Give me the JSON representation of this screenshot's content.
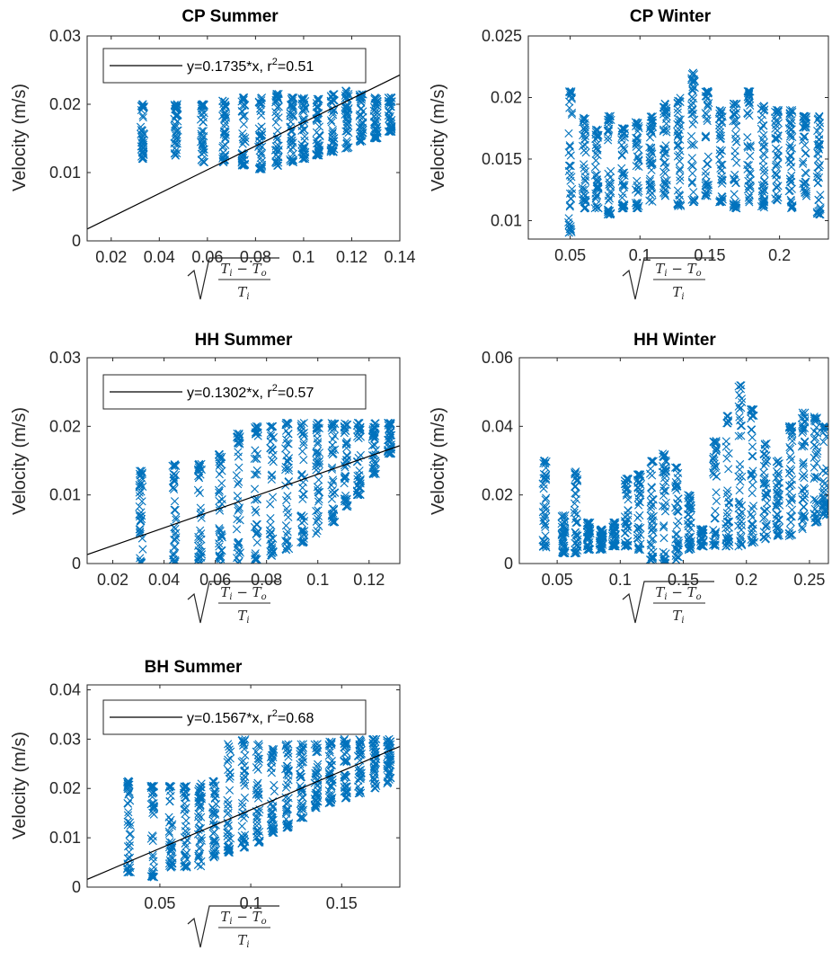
{
  "chart_data": [
    {
      "id": "cp-summer",
      "type": "scatter",
      "title": "CP Summer",
      "xlabel": "sqrt((T_i - T_o)/T_i)",
      "ylabel": "Velocity (m/s)",
      "xlim": [
        0.01,
        0.14
      ],
      "ylim": [
        0,
        0.03
      ],
      "xticks": [
        0.02,
        0.04,
        0.06,
        0.08,
        0.1,
        0.12,
        0.14
      ],
      "xticklabels": [
        "0.02",
        "0.04",
        "0.06",
        "0.08",
        "0.1",
        "0.12",
        "0.14"
      ],
      "yticks": [
        0,
        0.01,
        0.02,
        0.03
      ],
      "yticklabels": [
        "0",
        "0.01",
        "0.02",
        "0.03"
      ],
      "legend": "top-left",
      "fit": {
        "slope": 0.1735,
        "r2": 0.51,
        "label_prefix": "y=0.1735*x, r",
        "label_suffix": "=0.51"
      },
      "series": [
        {
          "x": 0.033,
          "y_min": 0.012,
          "y_max": 0.02
        },
        {
          "x": 0.047,
          "y_min": 0.0125,
          "y_max": 0.02
        },
        {
          "x": 0.058,
          "y_min": 0.0115,
          "y_max": 0.02
        },
        {
          "x": 0.067,
          "y_min": 0.0115,
          "y_max": 0.0205
        },
        {
          "x": 0.075,
          "y_min": 0.011,
          "y_max": 0.021
        },
        {
          "x": 0.082,
          "y_min": 0.0105,
          "y_max": 0.021
        },
        {
          "x": 0.089,
          "y_min": 0.011,
          "y_max": 0.0215
        },
        {
          "x": 0.095,
          "y_min": 0.0115,
          "y_max": 0.021
        },
        {
          "x": 0.1,
          "y_min": 0.012,
          "y_max": 0.021
        },
        {
          "x": 0.106,
          "y_min": 0.0125,
          "y_max": 0.021
        },
        {
          "x": 0.112,
          "y_min": 0.013,
          "y_max": 0.0215
        },
        {
          "x": 0.118,
          "y_min": 0.0135,
          "y_max": 0.022
        },
        {
          "x": 0.124,
          "y_min": 0.0145,
          "y_max": 0.0215
        },
        {
          "x": 0.13,
          "y_min": 0.015,
          "y_max": 0.021
        },
        {
          "x": 0.136,
          "y_min": 0.016,
          "y_max": 0.021
        }
      ]
    },
    {
      "id": "cp-winter",
      "type": "scatter",
      "title": "CP Winter",
      "xlabel": "sqrt((T_i - T_o)/T_i)",
      "ylabel": "Velocity (m/s)",
      "xlim": [
        0.02,
        0.235
      ],
      "ylim": [
        0.0085,
        0.025
      ],
      "xticks": [
        0.05,
        0.1,
        0.15,
        0.2
      ],
      "xticklabels": [
        "0.05",
        "0.1",
        "0.15",
        "0.2"
      ],
      "yticks": [
        0.01,
        0.015,
        0.02,
        0.025
      ],
      "yticklabels": [
        "0.01",
        "0.015",
        "0.02",
        "0.025"
      ],
      "series": [
        {
          "x": 0.05,
          "y_min": 0.009,
          "y_max": 0.0205
        },
        {
          "x": 0.06,
          "y_min": 0.011,
          "y_max": 0.0185
        },
        {
          "x": 0.069,
          "y_min": 0.011,
          "y_max": 0.0175
        },
        {
          "x": 0.078,
          "y_min": 0.0105,
          "y_max": 0.0185
        },
        {
          "x": 0.088,
          "y_min": 0.011,
          "y_max": 0.0175
        },
        {
          "x": 0.098,
          "y_min": 0.011,
          "y_max": 0.018
        },
        {
          "x": 0.108,
          "y_min": 0.0115,
          "y_max": 0.0185
        },
        {
          "x": 0.118,
          "y_min": 0.012,
          "y_max": 0.0195
        },
        {
          "x": 0.128,
          "y_min": 0.011,
          "y_max": 0.02
        },
        {
          "x": 0.138,
          "y_min": 0.0115,
          "y_max": 0.022
        },
        {
          "x": 0.148,
          "y_min": 0.012,
          "y_max": 0.0205
        },
        {
          "x": 0.158,
          "y_min": 0.0115,
          "y_max": 0.019
        },
        {
          "x": 0.168,
          "y_min": 0.011,
          "y_max": 0.0195
        },
        {
          "x": 0.178,
          "y_min": 0.0115,
          "y_max": 0.0205
        },
        {
          "x": 0.188,
          "y_min": 0.011,
          "y_max": 0.0195
        },
        {
          "x": 0.198,
          "y_min": 0.0115,
          "y_max": 0.019
        },
        {
          "x": 0.208,
          "y_min": 0.011,
          "y_max": 0.019
        },
        {
          "x": 0.218,
          "y_min": 0.012,
          "y_max": 0.0185
        },
        {
          "x": 0.228,
          "y_min": 0.0105,
          "y_max": 0.0185
        }
      ]
    },
    {
      "id": "hh-summer",
      "type": "scatter",
      "title": "HH Summer",
      "xlabel": "sqrt((T_i - T_o)/T_i)",
      "ylabel": "Velocity (m/s)",
      "xlim": [
        0.01,
        0.132
      ],
      "ylim": [
        0,
        0.03
      ],
      "xticks": [
        0.02,
        0.04,
        0.06,
        0.08,
        0.1,
        0.12
      ],
      "xticklabels": [
        "0.02",
        "0.04",
        "0.06",
        "0.08",
        "0.1",
        "0.12"
      ],
      "yticks": [
        0,
        0.01,
        0.02,
        0.03
      ],
      "yticklabels": [
        "0",
        "0.01",
        "0.02",
        "0.03"
      ],
      "legend": "top-left",
      "fit": {
        "slope": 0.1302,
        "r2": 0.57,
        "label_prefix": "y=0.1302*x, r",
        "label_suffix": "=0.57"
      },
      "series": [
        {
          "x": 0.031,
          "y_min": 0.0,
          "y_max": 0.0135
        },
        {
          "x": 0.044,
          "y_min": 0.0,
          "y_max": 0.0145
        },
        {
          "x": 0.054,
          "y_min": 0.0,
          "y_max": 0.0145
        },
        {
          "x": 0.062,
          "y_min": 0.0,
          "y_max": 0.016
        },
        {
          "x": 0.069,
          "y_min": 0.0,
          "y_max": 0.019
        },
        {
          "x": 0.076,
          "y_min": 0.0005,
          "y_max": 0.02
        },
        {
          "x": 0.082,
          "y_min": 0.001,
          "y_max": 0.02
        },
        {
          "x": 0.088,
          "y_min": 0.002,
          "y_max": 0.0205
        },
        {
          "x": 0.094,
          "y_min": 0.003,
          "y_max": 0.0205
        },
        {
          "x": 0.1,
          "y_min": 0.004,
          "y_max": 0.0205
        },
        {
          "x": 0.106,
          "y_min": 0.006,
          "y_max": 0.0205
        },
        {
          "x": 0.111,
          "y_min": 0.008,
          "y_max": 0.0205
        },
        {
          "x": 0.116,
          "y_min": 0.01,
          "y_max": 0.0205
        },
        {
          "x": 0.122,
          "y_min": 0.013,
          "y_max": 0.0205
        },
        {
          "x": 0.128,
          "y_min": 0.016,
          "y_max": 0.0205
        }
      ]
    },
    {
      "id": "hh-winter",
      "type": "scatter",
      "title": "HH Winter",
      "xlabel": "sqrt((T_i - T_o)/T_i)",
      "ylabel": "Velocity (m/s)",
      "xlim": [
        0.02,
        0.265
      ],
      "ylim": [
        0,
        0.06
      ],
      "xticks": [
        0.05,
        0.1,
        0.15,
        0.2,
        0.25
      ],
      "xticklabels": [
        "0.05",
        "0.1",
        "0.15",
        "0.2",
        "0.25"
      ],
      "yticks": [
        0,
        0.02,
        0.04,
        0.06
      ],
      "yticklabels": [
        "0",
        "0.02",
        "0.04",
        "0.06"
      ],
      "series": [
        {
          "x": 0.04,
          "y_min": 0.004,
          "y_max": 0.03
        },
        {
          "x": 0.055,
          "y_min": 0.003,
          "y_max": 0.014
        },
        {
          "x": 0.065,
          "y_min": 0.003,
          "y_max": 0.027
        },
        {
          "x": 0.075,
          "y_min": 0.004,
          "y_max": 0.012
        },
        {
          "x": 0.085,
          "y_min": 0.004,
          "y_max": 0.01
        },
        {
          "x": 0.095,
          "y_min": 0.005,
          "y_max": 0.012
        },
        {
          "x": 0.105,
          "y_min": 0.005,
          "y_max": 0.025
        },
        {
          "x": 0.115,
          "y_min": 0.004,
          "y_max": 0.026
        },
        {
          "x": 0.125,
          "y_min": 0.001,
          "y_max": 0.03
        },
        {
          "x": 0.135,
          "y_min": 0.0,
          "y_max": 0.032
        },
        {
          "x": 0.145,
          "y_min": 0.001,
          "y_max": 0.028
        },
        {
          "x": 0.155,
          "y_min": 0.004,
          "y_max": 0.02
        },
        {
          "x": 0.165,
          "y_min": 0.005,
          "y_max": 0.01
        },
        {
          "x": 0.175,
          "y_min": 0.005,
          "y_max": 0.036
        },
        {
          "x": 0.185,
          "y_min": 0.005,
          "y_max": 0.043
        },
        {
          "x": 0.195,
          "y_min": 0.005,
          "y_max": 0.052
        },
        {
          "x": 0.205,
          "y_min": 0.006,
          "y_max": 0.045
        },
        {
          "x": 0.215,
          "y_min": 0.007,
          "y_max": 0.035
        },
        {
          "x": 0.225,
          "y_min": 0.008,
          "y_max": 0.03
        },
        {
          "x": 0.235,
          "y_min": 0.008,
          "y_max": 0.04
        },
        {
          "x": 0.245,
          "y_min": 0.01,
          "y_max": 0.044
        },
        {
          "x": 0.255,
          "y_min": 0.012,
          "y_max": 0.043
        },
        {
          "x": 0.262,
          "y_min": 0.014,
          "y_max": 0.04
        }
      ]
    },
    {
      "id": "bh-summer",
      "type": "scatter",
      "title": "BH Summer",
      "xlabel": "sqrt((T_i - T_o)/T_i)",
      "ylabel": "Velocity (m/s)",
      "xlim": [
        0.01,
        0.182
      ],
      "ylim": [
        0,
        0.041
      ],
      "xticks": [
        0.05,
        0.1,
        0.15
      ],
      "xticklabels": [
        "0.05",
        "0.1",
        "0.15"
      ],
      "yticks": [
        0,
        0.01,
        0.02,
        0.03,
        0.04
      ],
      "yticklabels": [
        "0",
        "0.01",
        "0.02",
        "0.03",
        "0.04"
      ],
      "legend": "top-left",
      "fit": {
        "slope": 0.1567,
        "r2": 0.68,
        "label_prefix": "y=0.1567*x, r",
        "label_suffix": "=0.68"
      },
      "series": [
        {
          "x": 0.033,
          "y_min": 0.003,
          "y_max": 0.0215
        },
        {
          "x": 0.046,
          "y_min": 0.002,
          "y_max": 0.0205
        },
        {
          "x": 0.056,
          "y_min": 0.004,
          "y_max": 0.0205
        },
        {
          "x": 0.064,
          "y_min": 0.004,
          "y_max": 0.0205
        },
        {
          "x": 0.072,
          "y_min": 0.004,
          "y_max": 0.021
        },
        {
          "x": 0.08,
          "y_min": 0.006,
          "y_max": 0.0215
        },
        {
          "x": 0.088,
          "y_min": 0.007,
          "y_max": 0.029
        },
        {
          "x": 0.096,
          "y_min": 0.008,
          "y_max": 0.03
        },
        {
          "x": 0.104,
          "y_min": 0.009,
          "y_max": 0.029
        },
        {
          "x": 0.112,
          "y_min": 0.011,
          "y_max": 0.028
        },
        {
          "x": 0.12,
          "y_min": 0.012,
          "y_max": 0.029
        },
        {
          "x": 0.128,
          "y_min": 0.014,
          "y_max": 0.029
        },
        {
          "x": 0.136,
          "y_min": 0.016,
          "y_max": 0.029
        },
        {
          "x": 0.144,
          "y_min": 0.017,
          "y_max": 0.0295
        },
        {
          "x": 0.152,
          "y_min": 0.018,
          "y_max": 0.03
        },
        {
          "x": 0.16,
          "y_min": 0.019,
          "y_max": 0.03
        },
        {
          "x": 0.168,
          "y_min": 0.02,
          "y_max": 0.03
        },
        {
          "x": 0.176,
          "y_min": 0.021,
          "y_max": 0.03
        }
      ]
    }
  ],
  "colors": {
    "marker": "#0072BD",
    "fit_line": "#000000",
    "axis": "#262626"
  }
}
